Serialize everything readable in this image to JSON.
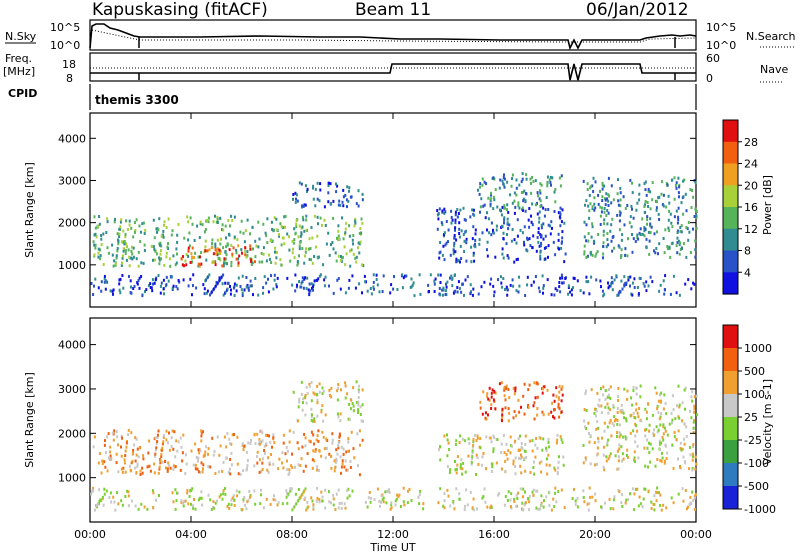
{
  "header": {
    "site": "Kapuskasing (fitACF)",
    "beam": "Beam 11",
    "date": "06/Jan/2012"
  },
  "top_panels": {
    "nsky_label": "N.Sky",
    "nsky_ticks": [
      "10^5",
      "10^0"
    ],
    "nsearch_label": "N.Search",
    "nsearch_ticks": [
      "10^5",
      "10^0"
    ],
    "freq_label": "Freq.",
    "freq_unit": "[MHz]",
    "freq_ticks": [
      "18",
      "8"
    ],
    "nave_label": "Nave",
    "nave_ticks": [
      "60",
      "0"
    ],
    "cpid_label": "CPID",
    "cpid_value": "themis 3300"
  },
  "chart_data": [
    {
      "type": "heatmap",
      "name": "power",
      "ylabel": "Slant Range [km]",
      "ylim": [
        0,
        4600
      ],
      "yticks": [
        "1000",
        "2000",
        "3000",
        "4000"
      ],
      "xlabel": "",
      "colorbar_label": "Power [dB]",
      "colorbar_ticks": [
        "4",
        "8",
        "12",
        "16",
        "20",
        "24",
        "28"
      ],
      "colorbar_colors": [
        "#1010e0",
        "#2a52c8",
        "#2f8c90",
        "#57b35a",
        "#a8d038",
        "#f0a020",
        "#f06010",
        "#e01010"
      ],
      "regions": [
        {
          "t0": 0.1,
          "t1": 10.8,
          "r0": 1000,
          "r1": 2200,
          "level": 3
        },
        {
          "t0": 3.5,
          "t1": 6.5,
          "r0": 1000,
          "r1": 1500,
          "level": 6
        },
        {
          "t0": 8.0,
          "t1": 10.8,
          "r0": 2400,
          "r1": 3000,
          "level": 1
        },
        {
          "t0": 13.7,
          "t1": 18.8,
          "r0": 1100,
          "r1": 2400,
          "level": 1
        },
        {
          "t0": 15.3,
          "t1": 18.7,
          "r0": 2300,
          "r1": 3200,
          "level": 2
        },
        {
          "t0": 19.5,
          "t1": 24.0,
          "r0": 1200,
          "r1": 3100,
          "level": 2
        },
        {
          "t0": 0.0,
          "t1": 24.0,
          "r0": 300,
          "r1": 800,
          "level": 1
        }
      ]
    },
    {
      "type": "heatmap",
      "name": "velocity",
      "ylabel": "Slant Range [km]",
      "ylim": [
        0,
        4600
      ],
      "yticks": [
        "1000",
        "2000",
        "3000",
        "4000"
      ],
      "xlabel": "Time UT",
      "xticks": [
        "00:00",
        "04:00",
        "08:00",
        "12:00",
        "16:00",
        "20:00",
        "00:00"
      ],
      "colorbar_label": "Velocity [m s-1]",
      "colorbar_ticks": [
        "1000",
        "500",
        "100",
        "25",
        "-25",
        "-100",
        "-500",
        "-1000"
      ],
      "colorbar_colors": [
        "#1a22d8",
        "#2e7bc0",
        "#3aa040",
        "#7ad030",
        "#c8c8c8",
        "#f0a030",
        "#f06010",
        "#e01010"
      ],
      "regions": [
        {
          "t0": 0.1,
          "t1": 10.8,
          "r0": 1100,
          "r1": 2100,
          "level": 5
        },
        {
          "t0": 8.0,
          "t1": 10.8,
          "r0": 2300,
          "r1": 3200,
          "level": 4
        },
        {
          "t0": 13.7,
          "t1": 18.8,
          "r0": 1100,
          "r1": 2000,
          "level": 4
        },
        {
          "t0": 15.3,
          "t1": 18.7,
          "r0": 2300,
          "r1": 3200,
          "level": 6
        },
        {
          "t0": 19.5,
          "t1": 24.0,
          "r0": 1200,
          "r1": 3100,
          "level": 4
        },
        {
          "t0": 0.0,
          "t1": 24.0,
          "r0": 300,
          "r1": 800,
          "level": 4
        }
      ]
    }
  ]
}
